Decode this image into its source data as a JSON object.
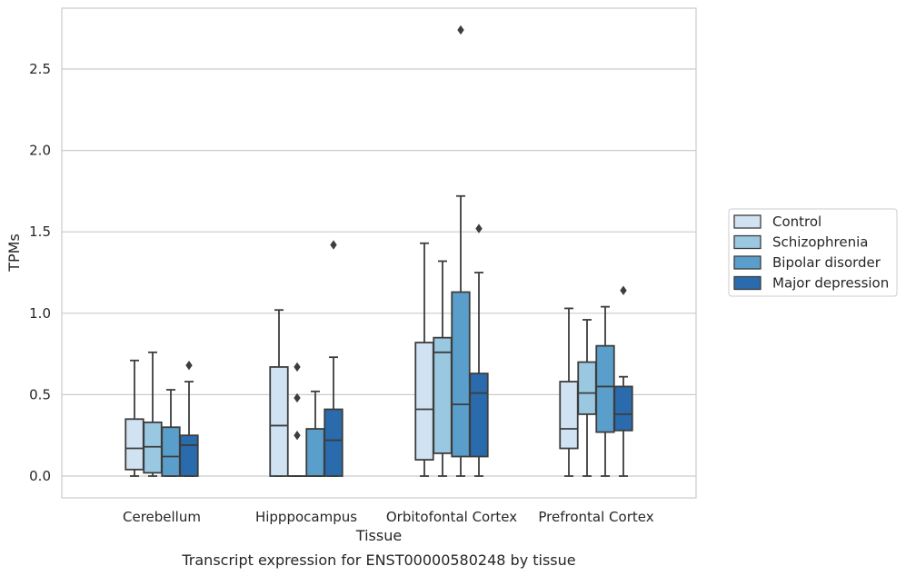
{
  "caption": "Transcript expression for ENST00000580248 by tissue",
  "chart_data": {
    "type": "boxplot",
    "xlabel": "Tissue",
    "ylabel": "TPMs",
    "ylim": [
      -0.13,
      2.9
    ],
    "yticks": [
      "0.0",
      "0.5",
      "1.0",
      "1.5",
      "2.0",
      "2.5"
    ],
    "grid": "horizontal",
    "legend_position": "right",
    "categories": [
      "Cerebellum",
      "Hipppocampus",
      "Orbitofontal Cortex",
      "Prefrontal Cortex"
    ],
    "series": [
      {
        "name": "Control",
        "color": "#d1e2f2",
        "boxes": [
          {
            "whislo": 0.0,
            "q1": 0.04,
            "med": 0.17,
            "q3": 0.35,
            "whishi": 0.71,
            "fliers": []
          },
          {
            "whislo": 0.0,
            "q1": 0.0,
            "med": 0.31,
            "q3": 0.67,
            "whishi": 1.02,
            "fliers": []
          },
          {
            "whislo": 0.0,
            "q1": 0.1,
            "med": 0.41,
            "q3": 0.82,
            "whishi": 1.43,
            "fliers": []
          },
          {
            "whislo": 0.0,
            "q1": 0.17,
            "med": 0.29,
            "q3": 0.58,
            "whishi": 1.03,
            "fliers": []
          }
        ]
      },
      {
        "name": "Schizophrenia",
        "color": "#9ac8e0",
        "boxes": [
          {
            "whislo": 0.0,
            "q1": 0.02,
            "med": 0.18,
            "q3": 0.33,
            "whishi": 0.76,
            "fliers": []
          },
          {
            "whislo": 0.0,
            "q1": 0.0,
            "med": 0.0,
            "q3": 0.0,
            "whishi": 0.0,
            "fliers": [
              0.25,
              0.48,
              0.67
            ]
          },
          {
            "whislo": 0.0,
            "q1": 0.14,
            "med": 0.76,
            "q3": 0.85,
            "whishi": 1.32,
            "fliers": []
          },
          {
            "whislo": 0.0,
            "q1": 0.38,
            "med": 0.51,
            "q3": 0.7,
            "whishi": 0.96,
            "fliers": []
          }
        ]
      },
      {
        "name": "Bipolar disorder",
        "color": "#5a9fcc",
        "boxes": [
          {
            "whislo": 0.0,
            "q1": 0.0,
            "med": 0.12,
            "q3": 0.3,
            "whishi": 0.53,
            "fliers": []
          },
          {
            "whislo": 0.0,
            "q1": 0.0,
            "med": 0.0,
            "q3": 0.29,
            "whishi": 0.52,
            "fliers": []
          },
          {
            "whislo": 0.0,
            "q1": 0.12,
            "med": 0.44,
            "q3": 1.13,
            "whishi": 1.72,
            "fliers": [
              2.74
            ]
          },
          {
            "whislo": 0.0,
            "q1": 0.27,
            "med": 0.55,
            "q3": 0.8,
            "whishi": 1.04,
            "fliers": []
          }
        ]
      },
      {
        "name": "Major depression",
        "color": "#2a6bad",
        "boxes": [
          {
            "whislo": 0.0,
            "q1": 0.0,
            "med": 0.19,
            "q3": 0.25,
            "whishi": 0.58,
            "fliers": [
              0.68
            ]
          },
          {
            "whislo": 0.0,
            "q1": 0.0,
            "med": 0.22,
            "q3": 0.41,
            "whishi": 0.73,
            "fliers": [
              1.42
            ]
          },
          {
            "whislo": 0.0,
            "q1": 0.12,
            "med": 0.51,
            "q3": 0.63,
            "whishi": 1.25,
            "fliers": [
              1.52
            ]
          },
          {
            "whislo": 0.0,
            "q1": 0.28,
            "med": 0.38,
            "q3": 0.55,
            "whishi": 0.61,
            "fliers": [
              1.14
            ]
          }
        ]
      }
    ]
  }
}
